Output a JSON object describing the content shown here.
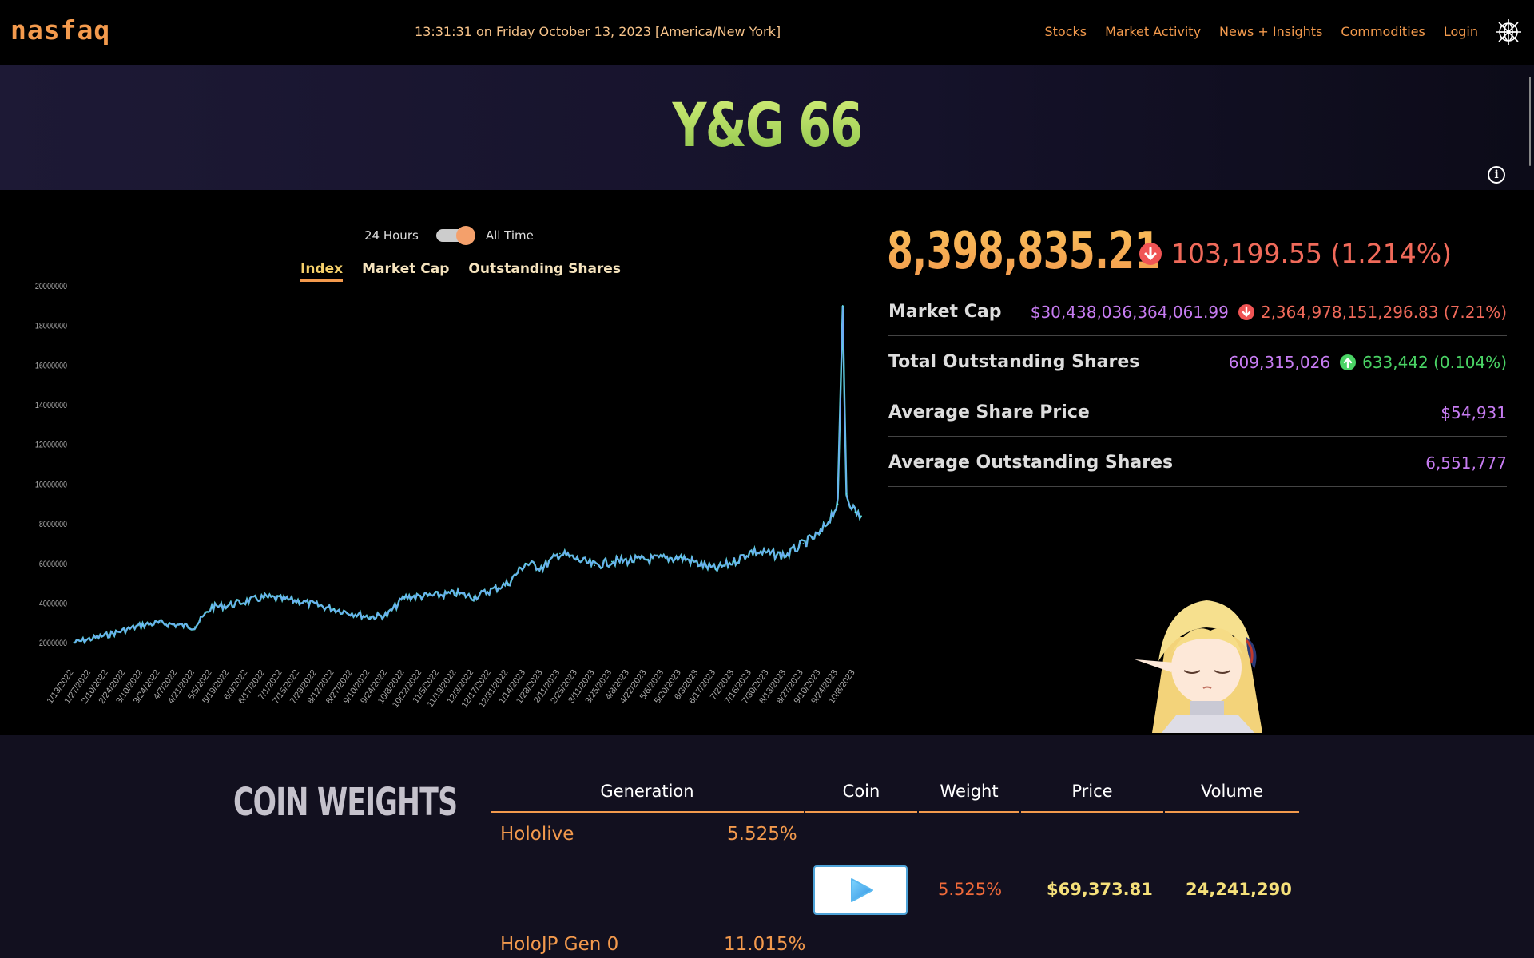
{
  "navbar": {
    "logo": "nasfaq",
    "clock": "13:31:31 on Friday October 13, 2023 [America/New York]",
    "links": [
      "Stocks",
      "Market Activity",
      "News + Insights",
      "Commodities",
      "Login"
    ]
  },
  "banner": {
    "title": "Y&G 66"
  },
  "chart_controls": {
    "toggle_left": "24 Hours",
    "toggle_right": "All Time",
    "toggle_state": "All Time",
    "tabs": [
      "Index",
      "Market Cap",
      "Outstanding Shares"
    ],
    "active_tab": "Index"
  },
  "chart_data": {
    "type": "line",
    "title": "",
    "xlabel": "",
    "ylabel": "",
    "ylim": [
      1000000,
      20000000
    ],
    "yticks": [
      "2000000",
      "4000000",
      "6000000",
      "8000000",
      "10000000",
      "12000000",
      "14000000",
      "16000000",
      "18000000",
      "20000000"
    ],
    "xticks": [
      "1/13/2022",
      "1/27/2022",
      "2/10/2022",
      "2/24/2022",
      "3/10/2022",
      "3/24/2022",
      "4/7/2022",
      "4/21/2022",
      "5/5/2022",
      "5/19/2022",
      "6/3/2022",
      "6/17/2022",
      "7/1/2022",
      "7/15/2022",
      "7/29/2022",
      "8/12/2022",
      "8/27/2022",
      "9/10/2022",
      "9/24/2022",
      "10/8/2022",
      "10/22/2022",
      "11/5/2022",
      "11/19/2022",
      "12/3/2022",
      "12/17/2022",
      "12/31/2022",
      "1/14/2023",
      "1/28/2023",
      "2/11/2023",
      "2/25/2023",
      "3/11/2023",
      "3/25/2023",
      "4/8/2023",
      "4/22/2023",
      "5/6/2023",
      "5/20/2023",
      "6/3/2023",
      "6/17/2023",
      "7/2/2023",
      "7/16/2023",
      "7/30/2023",
      "8/13/2023",
      "8/27/2023",
      "9/10/2023",
      "9/24/2023",
      "10/8/2023"
    ],
    "series": [
      {
        "color": "#6fa8f5",
        "highlight_color": "#5ff0e8",
        "x": [
          "1/13/2022",
          "2/10/2022",
          "3/10/2022",
          "3/24/2022",
          "4/21/2022",
          "5/5/2022",
          "5/19/2022",
          "6/17/2022",
          "7/15/2022",
          "8/12/2022",
          "9/10/2022",
          "9/24/2022",
          "10/8/2022",
          "11/5/2022",
          "11/19/2022",
          "12/3/2022",
          "12/31/2022",
          "1/14/2023",
          "1/28/2023",
          "2/11/2023",
          "2/25/2023",
          "3/11/2023",
          "3/25/2023",
          "4/22/2023",
          "5/20/2023",
          "6/17/2023",
          "7/2/2023",
          "7/16/2023",
          "8/13/2023",
          "8/27/2023",
          "9/10/2023",
          "9/24/2023",
          "9/28/2023",
          "10/1/2023",
          "10/8/2023",
          "10/13/2023"
        ],
        "y": [
          2000000,
          2400000,
          2900000,
          3000000,
          2800000,
          3800000,
          3900000,
          4300000,
          4100000,
          3700000,
          3300000,
          3400000,
          4300000,
          4400000,
          4500000,
          4300000,
          5000000,
          6000000,
          5800000,
          6500000,
          6200000,
          5900000,
          6100000,
          6200000,
          6300000,
          5700000,
          6100000,
          6600000,
          6400000,
          7000000,
          7500000,
          9000000,
          19000000,
          9500000,
          8600000,
          8400000
        ]
      }
    ]
  },
  "stats": {
    "price": "8,398,835.21",
    "price_change": "103,199.55 (1.214%)",
    "rows": [
      {
        "label": "Market Cap",
        "value": "$30,438,036,364,061.99",
        "change": "2,364,978,151,296.83 (7.21%)",
        "direction": "down"
      },
      {
        "label": "Total Outstanding Shares",
        "value": "609,315,026",
        "change": "633,442 (0.104%)",
        "direction": "up"
      },
      {
        "label": "Average Share Price",
        "value": "$54,931"
      },
      {
        "label": "Average Outstanding Shares",
        "value": "6,551,777"
      }
    ]
  },
  "coin_weights": {
    "title": "COIN WEIGHTS",
    "headers": [
      "Generation",
      "Coin",
      "Weight",
      "Price",
      "Volume"
    ],
    "generations": [
      {
        "name": "Hololive",
        "weight": "5.525%"
      },
      {
        "name": "HoloJP Gen 0",
        "weight": "11.015%"
      }
    ],
    "row": {
      "weight": "5.525%",
      "price": "$69,373.81",
      "volume": "24,241,290"
    }
  },
  "colors": {
    "accent": "#f39a4d",
    "purple": "#c77cf2",
    "down": "#f06a5a",
    "up": "#4ad465",
    "title_green": "#a8d85a"
  },
  "icons": [
    "globe-icon",
    "info-icon",
    "down-arrow-icon",
    "up-arrow-icon",
    "play-icon"
  ]
}
